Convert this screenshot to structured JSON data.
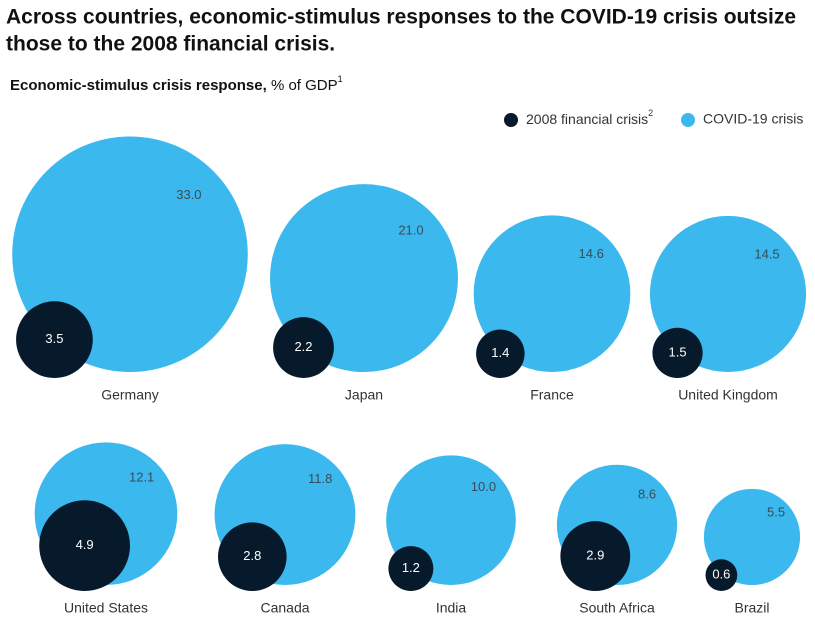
{
  "chart_data": {
    "type": "bubble-compare",
    "title_lines": [
      "Across countries, economic-stimulus responses to the COVID-19 crisis outsize",
      "those to the 2008 financial crisis."
    ],
    "subtitle_bold": "Economic-stimulus crisis response,",
    "subtitle_rest": "% of GDP",
    "subtitle_note": "1",
    "categories": [
      "Germany",
      "Japan",
      "France",
      "United Kingdom",
      "United States",
      "Canada",
      "India",
      "South Africa",
      "Brazil"
    ],
    "series": [
      {
        "name": "2008 financial crisis",
        "note": "2",
        "color": "#071a2b",
        "values": [
          3.5,
          2.2,
          1.4,
          1.5,
          4.9,
          2.8,
          1.2,
          2.9,
          0.6
        ]
      },
      {
        "name": "COVID-19 crisis",
        "color": "#3bb9ef",
        "values": [
          33.0,
          21.0,
          14.6,
          14.5,
          12.1,
          11.8,
          10.0,
          8.6,
          5.5
        ],
        "value_labels": [
          "33.0",
          "21.0",
          "14.6",
          "14.5",
          "12.1",
          "11.8",
          "10.0",
          "8.6",
          "5.5"
        ]
      }
    ]
  }
}
